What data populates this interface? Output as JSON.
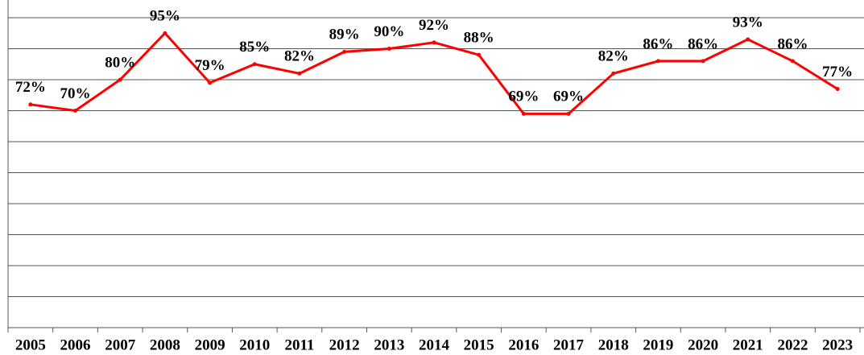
{
  "chart_data": {
    "type": "line",
    "categories": [
      "2005",
      "2006",
      "2007",
      "2008",
      "2009",
      "2010",
      "2011",
      "2012",
      "2013",
      "2014",
      "2015",
      "2016",
      "2017",
      "2018",
      "2019",
      "2020",
      "2021",
      "2022",
      "2023"
    ],
    "series": [
      {
        "color": "#ff0000",
        "values": [
          72,
          70,
          80,
          95,
          79,
          85,
          82,
          89,
          90,
          92,
          88,
          69,
          69,
          82,
          86,
          86,
          93,
          86,
          77
        ],
        "value_labels": [
          "72%",
          "70%",
          "80%",
          "95%",
          "79%",
          "85%",
          "82%",
          "89%",
          "90%",
          "92%",
          "88%",
          "69%",
          "69%",
          "82%",
          "86%",
          "86%",
          "93%",
          "86%",
          "77%"
        ]
      }
    ],
    "ylim": [
      0,
      100
    ],
    "yticks": [
      0,
      10,
      20,
      30,
      40,
      50,
      60,
      70,
      80,
      90,
      100
    ],
    "grid": true
  }
}
